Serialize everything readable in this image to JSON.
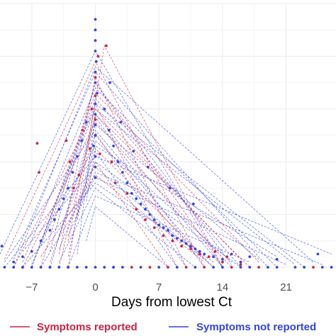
{
  "chart_data": {
    "type": "line",
    "title": "",
    "xlabel": "Days from lowest Ct",
    "ylabel": "",
    "xlim": [
      -10.5,
      26.5
    ],
    "ylim": [
      0,
      1.0
    ],
    "x_ticks": [
      -7,
      0,
      7,
      14,
      21
    ],
    "x_tick_labels": [
      "−7",
      "0",
      "7",
      "14",
      "21"
    ],
    "grid": true,
    "legend_position": "bottom",
    "peak": {
      "x": 0,
      "y": 0.82
    },
    "series": [
      {
        "name": "Symptoms reported",
        "color": "#cc2244",
        "line_style": "dashed",
        "trajectories": [
          [
            [
              -10,
              0.03
            ],
            [
              0,
              0.78
            ],
            [
              12,
              0.0
            ]
          ],
          [
            [
              -6,
              0.0
            ],
            [
              0,
              0.7
            ],
            [
              14,
              0.0
            ]
          ],
          [
            [
              -4,
              0.05
            ],
            [
              0,
              0.72
            ],
            [
              10,
              0.0
            ]
          ],
          [
            [
              -7,
              0.0
            ],
            [
              0,
              0.66
            ],
            [
              18,
              0.02
            ]
          ],
          [
            [
              -3,
              0.1
            ],
            [
              0,
              0.62
            ],
            [
              9,
              0.0
            ]
          ],
          [
            [
              -8,
              0.0
            ],
            [
              0,
              0.55
            ],
            [
              15,
              0.0
            ]
          ],
          [
            [
              -5,
              0.02
            ],
            [
              0,
              0.5
            ],
            [
              11,
              0.05
            ]
          ],
          [
            [
              -2,
              0.2
            ],
            [
              0,
              0.45
            ],
            [
              13,
              0.0
            ]
          ],
          [
            [
              -9,
              0.0
            ],
            [
              0,
              0.6
            ],
            [
              16,
              0.03
            ]
          ],
          [
            [
              -1,
              0.3
            ],
            [
              0,
              0.4
            ],
            [
              8,
              0.0
            ]
          ],
          [
            [
              -6,
              0.04
            ],
            [
              0,
              0.35
            ],
            [
              12,
              0.02
            ]
          ],
          [
            [
              -4,
              0.0
            ],
            [
              0,
              0.58
            ],
            [
              17,
              0.0
            ]
          ],
          [
            [
              -3,
              0.0
            ],
            [
              1,
              0.84
            ],
            [
              14,
              0.0
            ]
          ]
        ],
        "points": [
          [
            -6.4,
            0.47
          ],
          [
            -6.2,
            0.36
          ],
          [
            -3.2,
            0.48
          ],
          [
            -2.8,
            0.4
          ],
          [
            -2.4,
            0.3
          ],
          [
            -1.8,
            0.35
          ],
          [
            -1.4,
            0.52
          ],
          [
            -0.6,
            0.45
          ],
          [
            -0.4,
            0.6
          ],
          [
            0,
            0.72
          ],
          [
            0,
            0.65
          ],
          [
            0,
            0.56
          ],
          [
            0,
            0.5
          ],
          [
            0.3,
            0.8
          ],
          [
            0.5,
            0.43
          ],
          [
            1.2,
            0.84
          ],
          [
            1.8,
            0.4
          ],
          [
            2.2,
            0.32
          ],
          [
            3.5,
            0.28
          ],
          [
            4.5,
            0.22
          ],
          [
            5.5,
            0.18
          ],
          [
            6.5,
            0.15
          ],
          [
            7.5,
            0.12
          ],
          [
            8.5,
            0.1
          ],
          [
            9.5,
            0.08
          ],
          [
            10.5,
            0.07
          ],
          [
            11.5,
            0.05
          ],
          [
            12.5,
            0.04
          ],
          [
            13.2,
            0.06
          ],
          [
            14.0,
            0.02
          ],
          [
            14.5,
            0.04
          ],
          [
            16.0,
            0.01
          ],
          [
            -8,
            0.0
          ],
          [
            -5,
            0.0
          ],
          [
            -3,
            0.0
          ],
          [
            2,
            0.0
          ],
          [
            4,
            0.0
          ],
          [
            6,
            0.0
          ],
          [
            8,
            0.0
          ],
          [
            10,
            0.0
          ],
          [
            12,
            0.0
          ],
          [
            15,
            0.0
          ],
          [
            18,
            0.0
          ],
          [
            24,
            0.0
          ]
        ]
      },
      {
        "name": "Symptoms not reported",
        "color": "#3344dd",
        "line_style": "dashed",
        "trajectories": [
          [
            [
              -10.5,
              0.05
            ],
            [
              0,
              0.82
            ],
            [
              14,
              0.0
            ]
          ],
          [
            [
              -9,
              0.0
            ],
            [
              0,
              0.76
            ],
            [
              24,
              0.02
            ]
          ],
          [
            [
              -8,
              0.02
            ],
            [
              0,
              0.68
            ],
            [
              20,
              0.0
            ]
          ],
          [
            [
              -7,
              0.0
            ],
            [
              0,
              0.64
            ],
            [
              16,
              0.0
            ]
          ],
          [
            [
              -6,
              0.08
            ],
            [
              0,
              0.6
            ],
            [
              22,
              0.01
            ]
          ],
          [
            [
              -5,
              0.0
            ],
            [
              0,
              0.57
            ],
            [
              12,
              0.0
            ]
          ],
          [
            [
              -4,
              0.12
            ],
            [
              0,
              0.54
            ],
            [
              18,
              0.03
            ]
          ],
          [
            [
              -3,
              0.04
            ],
            [
              0,
              0.51
            ],
            [
              10,
              0.0
            ]
          ],
          [
            [
              -2,
              0.18
            ],
            [
              0,
              0.48
            ],
            [
              15,
              0.02
            ]
          ],
          [
            [
              -1,
              0.25
            ],
            [
              0,
              0.44
            ],
            [
              9,
              0.0
            ]
          ],
          [
            [
              -10,
              0.0
            ],
            [
              0,
              0.42
            ],
            [
              26,
              0.05
            ]
          ],
          [
            [
              -8,
              0.06
            ],
            [
              0,
              0.38
            ],
            [
              13,
              0.0
            ]
          ],
          [
            [
              -6,
              0.0
            ],
            [
              0,
              0.34
            ],
            [
              21,
              0.01
            ]
          ],
          [
            [
              -4,
              0.02
            ],
            [
              0,
              0.3
            ],
            [
              11,
              0.0
            ]
          ],
          [
            [
              -3,
              0.0
            ],
            [
              0,
              0.27
            ],
            [
              17,
              0.02
            ]
          ],
          [
            [
              -9,
              0.03
            ],
            [
              0,
              0.74
            ],
            [
              19,
              0.0
            ]
          ],
          [
            [
              -5,
              0.06
            ],
            [
              0,
              0.7
            ],
            [
              15,
              0.01
            ]
          ],
          [
            [
              -7,
              0.01
            ],
            [
              0,
              0.62
            ],
            [
              23,
              0.0
            ]
          ],
          [
            [
              -2,
              0.05
            ],
            [
              0,
              0.58
            ],
            [
              14,
              0.0
            ]
          ],
          [
            [
              -1,
              0.1
            ],
            [
              0,
              0.23
            ],
            [
              8,
              0.0
            ]
          ],
          [
            [
              -10,
              0.02
            ],
            [
              0,
              0.52
            ],
            [
              12,
              0.03
            ]
          ],
          [
            [
              -6,
              0.1
            ],
            [
              0,
              0.46
            ],
            [
              20,
              0.04
            ]
          ],
          [
            [
              -4,
              0.07
            ],
            [
              0,
              0.4
            ],
            [
              16,
              0.0
            ]
          ],
          [
            [
              -3,
              0.12
            ],
            [
              0,
              0.36
            ],
            [
              25,
              0.01
            ]
          ],
          [
            [
              -8,
              0.0
            ],
            [
              0,
              0.32
            ],
            [
              13,
              0.02
            ]
          ]
        ],
        "points": [
          [
            0,
            0.94
          ],
          [
            0,
            0.9
          ],
          [
            0,
            0.86
          ],
          [
            0,
            0.82
          ],
          [
            0.1,
            0.78
          ],
          [
            0,
            0.74
          ],
          [
            0,
            0.7
          ],
          [
            0.2,
            0.66
          ],
          [
            0,
            0.62
          ],
          [
            0,
            0.58
          ],
          [
            0,
            0.54
          ],
          [
            0,
            0.5
          ],
          [
            -0.2,
            0.46
          ],
          [
            0,
            0.42
          ],
          [
            0,
            0.38
          ],
          [
            0,
            0.34
          ],
          [
            -1,
            0.55
          ],
          [
            -1.5,
            0.48
          ],
          [
            -2,
            0.42
          ],
          [
            -2.5,
            0.36
          ],
          [
            -3,
            0.3
          ],
          [
            -3.5,
            0.26
          ],
          [
            -4,
            0.22
          ],
          [
            -4.5,
            0.18
          ],
          [
            -5,
            0.14
          ],
          [
            -6,
            0.1
          ],
          [
            -7,
            0.06
          ],
          [
            -8,
            0.04
          ],
          [
            -9,
            0.02
          ],
          [
            -10.3,
            0.08
          ],
          [
            1,
            0.6
          ],
          [
            1.5,
            0.52
          ],
          [
            2,
            0.46
          ],
          [
            2.5,
            0.4
          ],
          [
            3,
            0.36
          ],
          [
            3.5,
            0.32
          ],
          [
            4,
            0.28
          ],
          [
            4.5,
            0.26
          ],
          [
            5,
            0.24
          ],
          [
            5.5,
            0.22
          ],
          [
            6,
            0.2
          ],
          [
            6.5,
            0.18
          ],
          [
            7,
            0.16
          ],
          [
            7.5,
            0.15
          ],
          [
            8,
            0.14
          ],
          [
            8.5,
            0.12
          ],
          [
            9,
            0.11
          ],
          [
            9.5,
            0.1
          ],
          [
            10,
            0.09
          ],
          [
            10.5,
            0.08
          ],
          [
            11,
            0.07
          ],
          [
            11.5,
            0.06
          ],
          [
            12,
            0.05
          ],
          [
            13,
            0.04
          ],
          [
            14,
            0.03
          ],
          [
            15,
            0.05
          ],
          [
            16,
            0.02
          ],
          [
            17,
            0.04
          ],
          [
            20,
            0.03
          ],
          [
            24.5,
            0.05
          ],
          [
            5.8,
            0.38
          ],
          [
            8.2,
            0.3
          ],
          [
            10.8,
            0.24
          ],
          [
            2.8,
            0.55
          ],
          [
            4.2,
            0.44
          ],
          [
            1.6,
            0.7
          ],
          [
            -10,
            0.0
          ],
          [
            -9,
            0.0
          ],
          [
            -8,
            0.0
          ],
          [
            -7,
            0.0
          ],
          [
            -6,
            0.0
          ],
          [
            -5,
            0.0
          ],
          [
            -4,
            0.0
          ],
          [
            -3,
            0.0
          ],
          [
            -2,
            0.0
          ],
          [
            -1,
            0.0
          ],
          [
            0,
            0.0
          ],
          [
            1,
            0.0
          ],
          [
            2,
            0.0
          ],
          [
            3,
            0.0
          ],
          [
            5,
            0.0
          ],
          [
            7,
            0.0
          ],
          [
            9,
            0.0
          ],
          [
            11,
            0.0
          ],
          [
            13,
            0.0
          ],
          [
            14,
            0.0
          ],
          [
            16,
            0.0
          ],
          [
            17,
            0.0
          ],
          [
            19,
            0.0
          ],
          [
            20,
            0.0
          ],
          [
            22,
            0.0
          ],
          [
            23,
            0.0
          ],
          [
            25,
            0.0
          ],
          [
            26,
            0.0
          ]
        ]
      }
    ],
    "legend": [
      {
        "label": "Symptoms reported",
        "color": "#cc2244"
      },
      {
        "label": "Symptoms not reported",
        "color": "#3344dd"
      }
    ]
  }
}
